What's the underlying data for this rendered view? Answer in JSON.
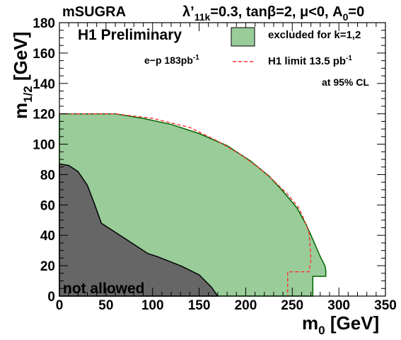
{
  "chart_data": {
    "type": "area",
    "header_left": "mSUGRA",
    "header_right": {
      "lambda": "λ’",
      "lambda_sub": "11k",
      "rest": "=0.3, tanβ=2, μ<0, A",
      "a_sub": "0",
      "tail": "=0"
    },
    "title": "H1 Preliminary",
    "lumi": {
      "text": "e−p 183pb",
      "sup": "-1"
    },
    "xlabel": {
      "main": "m",
      "sub": "0",
      "unit": " [GeV]"
    },
    "ylabel": {
      "main": "m",
      "sub": "1/2",
      "unit": " [GeV]"
    },
    "xlim": [
      0,
      350
    ],
    "ylim": [
      0,
      180
    ],
    "x_ticks": [
      0,
      50,
      100,
      150,
      200,
      250,
      300,
      350
    ],
    "y_ticks": [
      0,
      20,
      40,
      60,
      80,
      100,
      120,
      140,
      160,
      180
    ],
    "x_tick_labels": [
      "0",
      "50",
      "100",
      "150",
      "200",
      "250",
      "300",
      "350"
    ],
    "y_tick_labels": [
      "0",
      "20",
      "40",
      "60",
      "80",
      "100",
      "120",
      "140",
      "160",
      "180"
    ],
    "legend": {
      "placement": "top-right",
      "excluded_label": "excluded for k=1,2",
      "limit_label": {
        "text": "H1 limit 13.5 pb",
        "sup": "-1"
      },
      "cl_label": "at 95% CL"
    },
    "not_allowed_label": "not allowed",
    "colors": {
      "excluded_fill": "#99cc99",
      "excluded_edge": "#006600",
      "not_allowed_fill": "#666666",
      "limit_line": "#ff3333"
    },
    "series": [
      {
        "name": "excluded for k=1,2",
        "style": "filled",
        "points": [
          [
            0,
            0
          ],
          [
            0,
            120
          ],
          [
            60,
            120
          ],
          [
            90,
            117
          ],
          [
            120,
            113
          ],
          [
            150,
            107
          ],
          [
            180,
            99
          ],
          [
            205,
            89
          ],
          [
            225,
            79
          ],
          [
            240,
            69
          ],
          [
            255,
            58
          ],
          [
            265,
            47
          ],
          [
            273,
            36
          ],
          [
            280,
            26
          ],
          [
            285,
            20
          ],
          [
            286,
            17
          ],
          [
            286,
            13
          ],
          [
            272,
            13
          ],
          [
            272,
            0
          ]
        ]
      },
      {
        "name": "H1 limit 13.5 pb-1",
        "style": "dashed",
        "points": [
          [
            0,
            120
          ],
          [
            60,
            120
          ],
          [
            100,
            117
          ],
          [
            140,
            111
          ],
          [
            170,
            102
          ],
          [
            195,
            93
          ],
          [
            215,
            84
          ],
          [
            230,
            76
          ],
          [
            245,
            67
          ],
          [
            257,
            58
          ],
          [
            263,
            50
          ],
          [
            268,
            42
          ],
          [
            269,
            34
          ],
          [
            270,
            24
          ],
          [
            268,
            16
          ],
          [
            245,
            16
          ],
          [
            245,
            0
          ]
        ]
      },
      {
        "name": "not allowed",
        "style": "filled",
        "points": [
          [
            0,
            0
          ],
          [
            0,
            87
          ],
          [
            10,
            86
          ],
          [
            20,
            82
          ],
          [
            30,
            73
          ],
          [
            38,
            60
          ],
          [
            45,
            48
          ],
          [
            55,
            44
          ],
          [
            75,
            36
          ],
          [
            95,
            28
          ],
          [
            105,
            26
          ],
          [
            130,
            20
          ],
          [
            150,
            14
          ],
          [
            163,
            6
          ],
          [
            170,
            0
          ]
        ]
      }
    ]
  }
}
